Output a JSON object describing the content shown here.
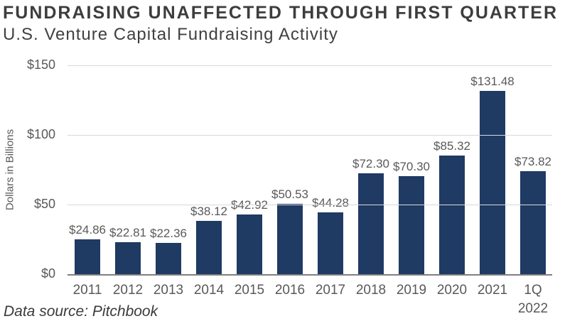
{
  "chart_data": {
    "type": "bar",
    "title": "FUNDRAISING UNAFFECTED THROUGH FIRST QUARTER",
    "subtitle": "U.S. Venture Capital Fundraising Activity",
    "categories": [
      "2011",
      "2012",
      "2013",
      "2014",
      "2015",
      "2016",
      "2017",
      "2018",
      "2019",
      "2020",
      "2021",
      "1Q 2022"
    ],
    "values": [
      24.86,
      22.81,
      22.36,
      38.12,
      42.92,
      50.53,
      44.28,
      72.3,
      70.3,
      85.32,
      131.48,
      73.82
    ],
    "data_labels": [
      "$24.86",
      "$22.81",
      "$22.36",
      "$38.12",
      "$42.92",
      "$50.53",
      "$44.28",
      "$72.30",
      "$70.30",
      "$85.32",
      "$131.48",
      "$73.82"
    ],
    "xlabel": "",
    "ylabel": "Dollars in Billions",
    "ylim": [
      0,
      150
    ],
    "y_ticks": [
      0,
      50,
      100,
      150
    ],
    "y_tick_labels": [
      "$0",
      "$50",
      "$100",
      "$150"
    ],
    "grid": true,
    "legend": false,
    "bar_color": "#1f3a63",
    "grid_color": "#d9d9d9",
    "axis_color": "#808080",
    "label_color": "#595959",
    "source": "Data source: Pitchbook"
  }
}
